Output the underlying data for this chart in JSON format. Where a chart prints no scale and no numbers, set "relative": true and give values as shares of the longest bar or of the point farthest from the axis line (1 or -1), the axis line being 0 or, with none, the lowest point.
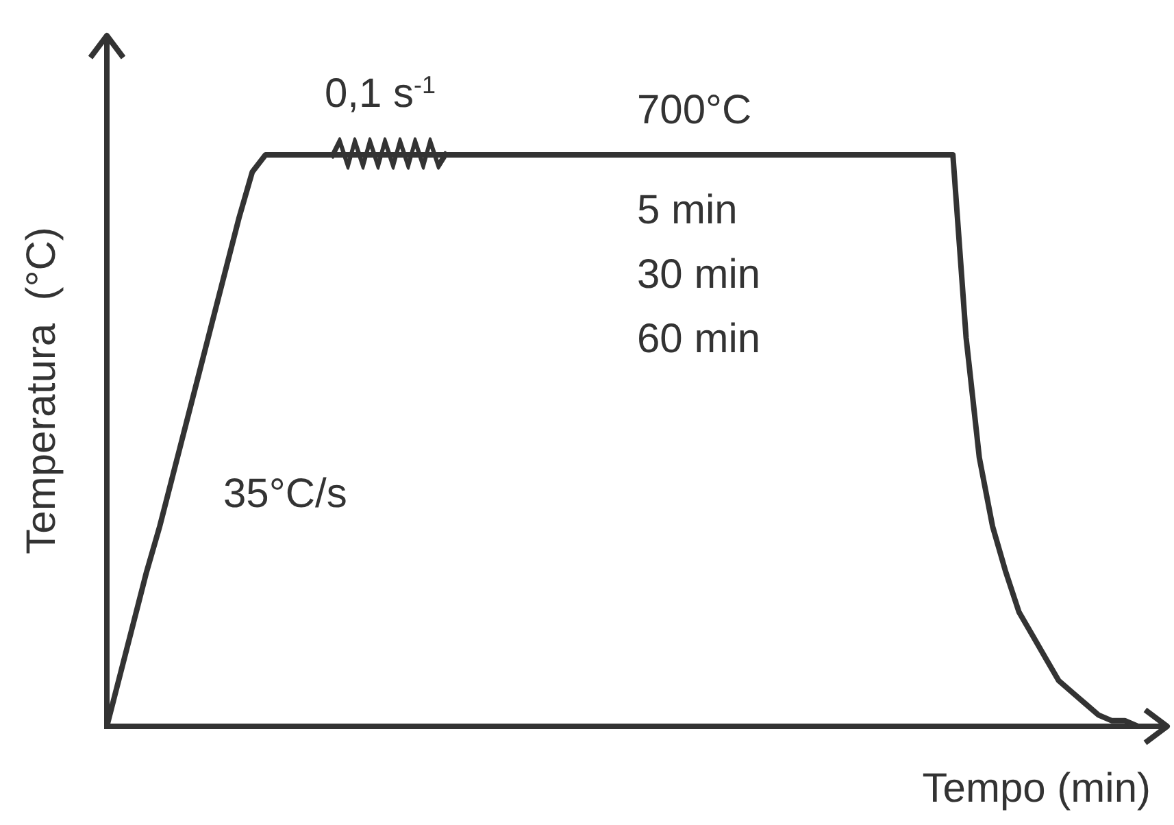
{
  "chart_data": {
    "type": "line",
    "relative": true,
    "marker": "none",
    "line_style": "solid",
    "xlabel": "Tempo (min)",
    "ylabel": "Temperatura  (°C)",
    "annotations": [
      "0,1 s$^{-1}$",
      "700°C",
      "5 min",
      "30 min",
      "60 min",
      "35°C/s"
    ],
    "categories": [
      null,
      null,
      null,
      null,
      null,
      null,
      null,
      null,
      null,
      null,
      null,
      null,
      null,
      null,
      null,
      null,
      null,
      null,
      null,
      null,
      null,
      null,
      null,
      null,
      null,
      null,
      null,
      null,
      null,
      null,
      null,
      null,
      null,
      null,
      null,
      null,
      null,
      null,
      null,
      null,
      null,
      null,
      null,
      null,
      null,
      null,
      null,
      null,
      null,
      null,
      null,
      null,
      null,
      null,
      null,
      null,
      null,
      null,
      null,
      null,
      null,
      null,
      null,
      null,
      null,
      null,
      null,
      null,
      null,
      null,
      null,
      null,
      null,
      null,
      null,
      null,
      null,
      null,
      null,
      null,
      null
    ],
    "series": [
      {
        "color": "#333333",
        "values": [
          0,
          0.09,
          0.18,
          0.27,
          0.35,
          0.44,
          0.53,
          0.62,
          0.71,
          0.8,
          0.89,
          0.97,
          1,
          1,
          1,
          1,
          1,
          1,
          1,
          1,
          1,
          1,
          1,
          1,
          1,
          1,
          1,
          1,
          1,
          1,
          1,
          1,
          1,
          1,
          1,
          1,
          1,
          1,
          1,
          1,
          1,
          1,
          1,
          1,
          1,
          1,
          1,
          1,
          1,
          1,
          1,
          1,
          1,
          1,
          1,
          1,
          1,
          1,
          1,
          1,
          1,
          1,
          1,
          1,
          1,
          0.68,
          0.47,
          0.35,
          0.27,
          0.2,
          0.16,
          0.12,
          0.08,
          0.06,
          0.04,
          0.02,
          0.01,
          0.01,
          0,
          0,
          0
        ]
      }
    ]
  }
}
